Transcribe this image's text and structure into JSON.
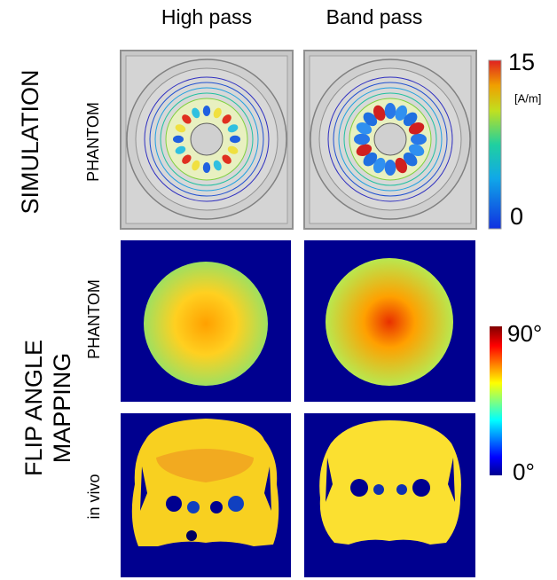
{
  "columns": [
    "High pass",
    "Band pass"
  ],
  "groups": [
    {
      "label_lines": [
        "SIMULATION"
      ],
      "rows": [
        "PHANTOM"
      ]
    },
    {
      "label_lines": [
        "FLIP ANGLE",
        "MAPPING"
      ],
      "rows": [
        "PHANTOM",
        "in vivo"
      ]
    }
  ],
  "colorbars": [
    {
      "max": "15",
      "unit": "[A/m]",
      "min": "0"
    },
    {
      "max": "90°",
      "min": "0°"
    }
  ]
}
